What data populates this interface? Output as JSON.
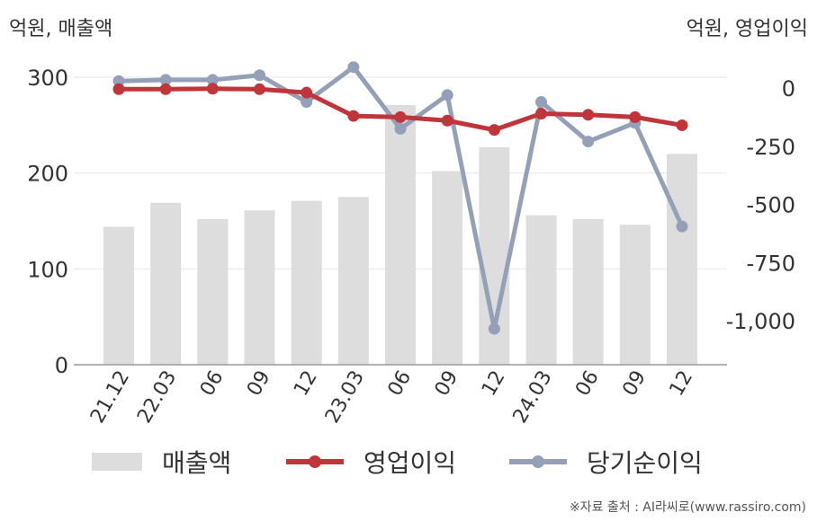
{
  "y_left_unit": "억원, 매출액",
  "y_right_unit": "억원, 영업이익",
  "footer": "※자료 출처 : AI라씨로(www.rassiro.com)",
  "legend": [
    {
      "label": "매출액",
      "kind": "bar",
      "color": "#dddddd"
    },
    {
      "label": "영업이익",
      "kind": "line",
      "color": "#c0353a"
    },
    {
      "label": "당기순이익",
      "kind": "line",
      "color": "#94a0b8"
    }
  ],
  "chart_data": {
    "type": "bar",
    "categories": [
      "21.12",
      "22.03",
      "06",
      "09",
      "12",
      "23.03",
      "06",
      "09",
      "12",
      "24.03",
      "06",
      "09",
      "12"
    ],
    "series": [
      {
        "name": "매출액",
        "type": "bar",
        "axis": "left",
        "color": "#dddddd",
        "values": [
          144,
          169,
          152,
          161,
          171,
          175,
          271,
          202,
          227,
          156,
          152,
          146,
          220
        ]
      },
      {
        "name": "영업이익",
        "type": "line",
        "axis": "right",
        "color": "#c0353a",
        "values": [
          -5,
          -5,
          -3,
          -5,
          -20,
          -120,
          -125,
          -140,
          -180,
          -110,
          -115,
          -125,
          -160
        ]
      },
      {
        "name": "당기순이익",
        "type": "line",
        "axis": "right",
        "color": "#94a0b8",
        "values": [
          30,
          35,
          35,
          55,
          -60,
          90,
          -175,
          -30,
          -1035,
          -60,
          -230,
          -150,
          -595
        ]
      }
    ],
    "left_axis": {
      "ticks": [
        0,
        100,
        200,
        300
      ],
      "tick_labels": [
        "0",
        "100",
        "200",
        "300"
      ],
      "ylim": [
        0,
        300
      ]
    },
    "right_axis": {
      "ticks": [
        0,
        -250,
        -500,
        -750,
        -1000
      ],
      "tick_labels": [
        "0",
        "-250",
        "-500",
        "-750",
        "-1,000"
      ]
    },
    "grid": true,
    "legend_position": "bottom"
  }
}
